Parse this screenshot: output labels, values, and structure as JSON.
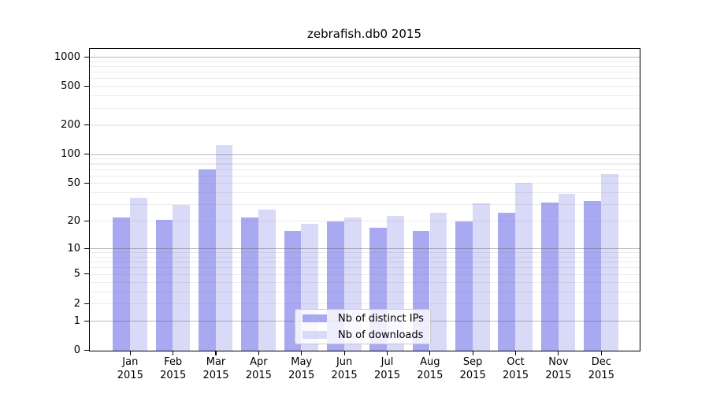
{
  "title": "zebrafish.db0 2015",
  "chart_data": {
    "type": "bar",
    "title": "zebrafish.db0 2015",
    "categories": [
      "Jan",
      "Feb",
      "Mar",
      "Apr",
      "May",
      "Jun",
      "Jul",
      "Aug",
      "Sep",
      "Oct",
      "Nov",
      "Dec"
    ],
    "year_label": "2015",
    "series": [
      {
        "name": "Nb of distinct IPs",
        "color": "#a9a9f1",
        "values": [
          22,
          21,
          71,
          22,
          16,
          20,
          17,
          16,
          20,
          25,
          32,
          33
        ]
      },
      {
        "name": "Nb of downloads",
        "color": "#d9d9f8",
        "values": [
          36,
          30,
          126,
          27,
          19,
          22,
          23,
          25,
          31,
          51,
          39,
          63
        ]
      }
    ],
    "xlabel": "",
    "ylabel": "",
    "ylim": [
      0,
      1000
    ],
    "yscale": "log1p",
    "ytick_values": [
      0,
      1,
      2,
      5,
      10,
      20,
      50,
      100,
      200,
      500,
      1000
    ],
    "ytick_labels": [
      "0",
      "1",
      "2",
      "5",
      "10",
      "20",
      "50",
      "100",
      "200",
      "500",
      "1000"
    ],
    "major_gridline_values": [
      1,
      10,
      100,
      1000
    ],
    "minor_gridline_values": [
      2,
      3,
      4,
      5,
      6,
      7,
      8,
      9,
      20,
      30,
      40,
      50,
      60,
      70,
      80,
      90,
      200,
      300,
      400,
      500,
      600,
      700,
      800,
      900
    ],
    "grid": true,
    "legend_position": "lower-center"
  },
  "colors": {
    "bar_distinct_ips": "#a9a9f1",
    "bar_downloads": "#d9d9f8",
    "grid_major": "#bcbcbc",
    "grid_minor": "#e9e9e9",
    "spine": "#000000",
    "background": "#ffffff"
  }
}
